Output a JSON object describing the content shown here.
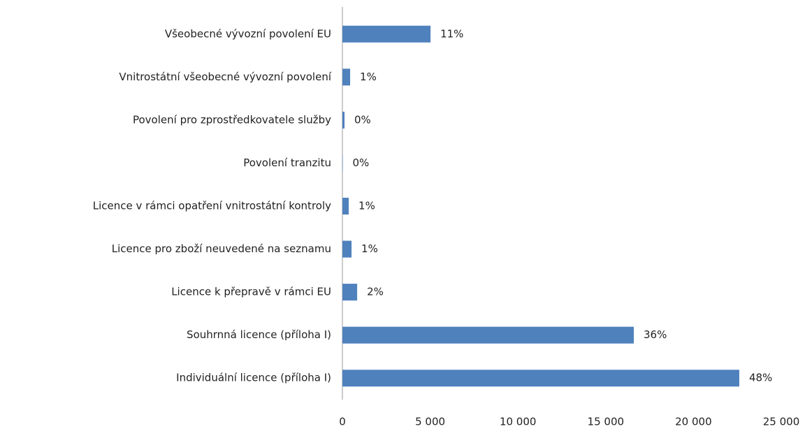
{
  "chart_data": {
    "type": "hbar",
    "categories": [
      "Všeobecné vývozní povolení EU",
      "Vnitrostátní všeobecné vývozní povolení",
      "Povolení pro zprostředkovatele služby",
      "Povolení tranzitu",
      "Licence v rámci opatření vnitrostátní kontroly",
      "Licence pro zboží neuvedené na seznamu",
      "Licence k přepravě v rámci EU",
      "Souhrnná licence (příloha I)",
      "Individuální licence (příloha I)"
    ],
    "values": [
      5020,
      440,
      120,
      20,
      360,
      520,
      840,
      16600,
      22610
    ],
    "value_labels": [
      "11%",
      "1%",
      "0%",
      "0%",
      "1%",
      "1%",
      "2%",
      "36%",
      "48%"
    ],
    "color": "#4f81bd",
    "xlim": [
      0,
      25000
    ],
    "xticks": [
      0,
      {
        "value": 5000,
        "label": "5 000"
      },
      {
        "value": 10000,
        "label": "10 000"
      },
      {
        "value": 15000,
        "label": "15 000"
      },
      {
        "value": 20000,
        "label": "20 000"
      },
      {
        "value": 25000,
        "label": "25 000"
      }
    ],
    "grid": false
  }
}
